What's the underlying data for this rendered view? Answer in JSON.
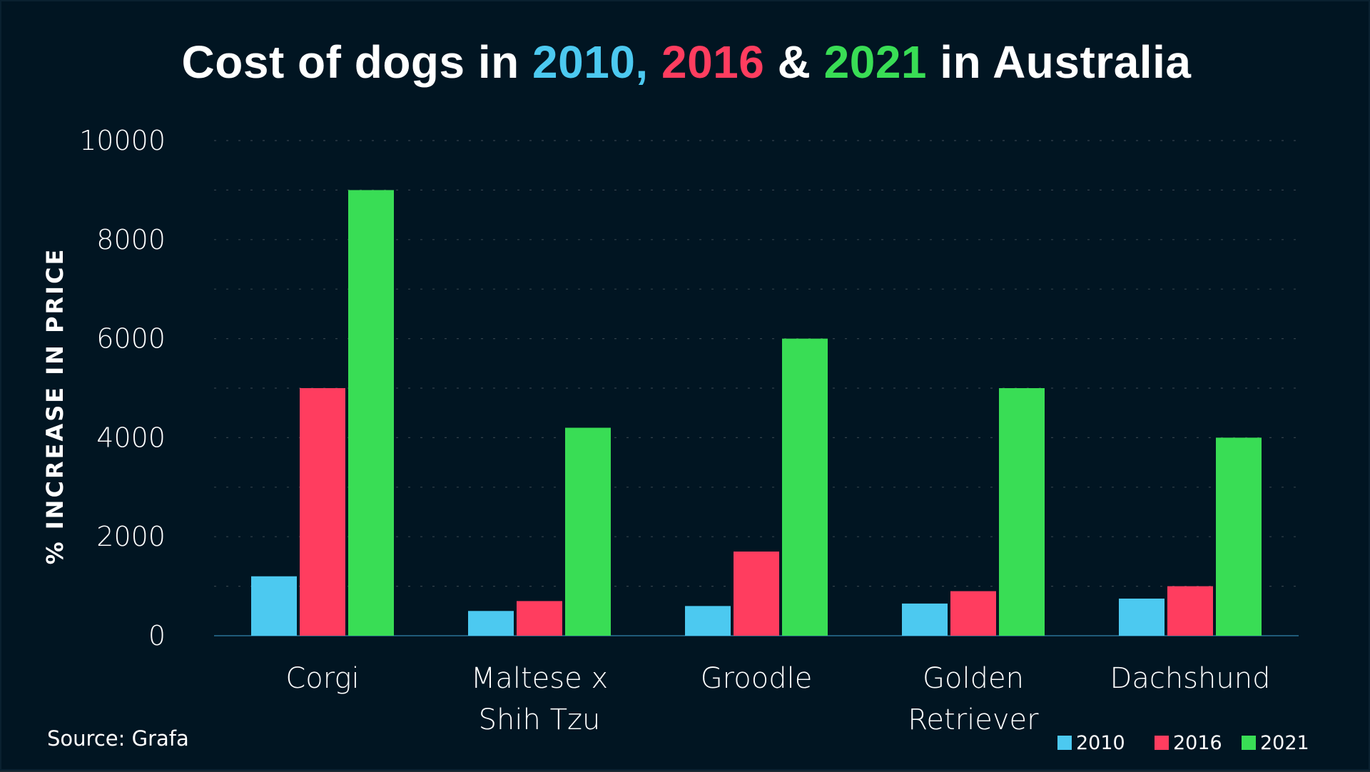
{
  "title_parts": [
    {
      "text": "Cost of dogs in ",
      "color": "#ffffff"
    },
    {
      "text": "2010,",
      "color": "#4cc9f0"
    },
    {
      "text": " ",
      "color": "#ffffff"
    },
    {
      "text": "2016",
      "color": "#ff3d5f"
    },
    {
      "text": " & ",
      "color": "#ffffff"
    },
    {
      "text": "2021",
      "color": "#39dd55"
    },
    {
      "text": " in Australia",
      "color": "#ffffff"
    }
  ],
  "source": "Source: Grafa",
  "colors": {
    "background": "#011522",
    "grid": "#33414b",
    "axis": "#1f5a7a"
  },
  "chart_data": {
    "type": "bar",
    "title": "Cost of dogs in 2010, 2016 & 2021 in Australia",
    "xlabel": "",
    "ylabel": "% INCREASE IN PRICE",
    "ylim": [
      0,
      10000
    ],
    "yticks": [
      0,
      2000,
      4000,
      6000,
      8000,
      10000
    ],
    "yticks_labels": [
      "0",
      "2000",
      "4000",
      "6000",
      "8000",
      "10000"
    ],
    "minor_grid_step": 1000,
    "grid": true,
    "legend_position": "bottom-right",
    "categories": [
      [
        "Corgi"
      ],
      [
        "Maltese x",
        "Shih Tzu"
      ],
      [
        "Groodle"
      ],
      [
        "Golden",
        "Retriever"
      ],
      [
        "Dachshund"
      ]
    ],
    "series": [
      {
        "name": "2010",
        "color": "#4cc9f0",
        "values": [
          1200,
          500,
          600,
          650,
          750
        ]
      },
      {
        "name": "2016",
        "color": "#ff3d5f",
        "values": [
          5000,
          700,
          1700,
          900,
          1000
        ]
      },
      {
        "name": "2021",
        "color": "#39dd55",
        "values": [
          9000,
          4200,
          6000,
          5000,
          4000
        ]
      }
    ]
  }
}
